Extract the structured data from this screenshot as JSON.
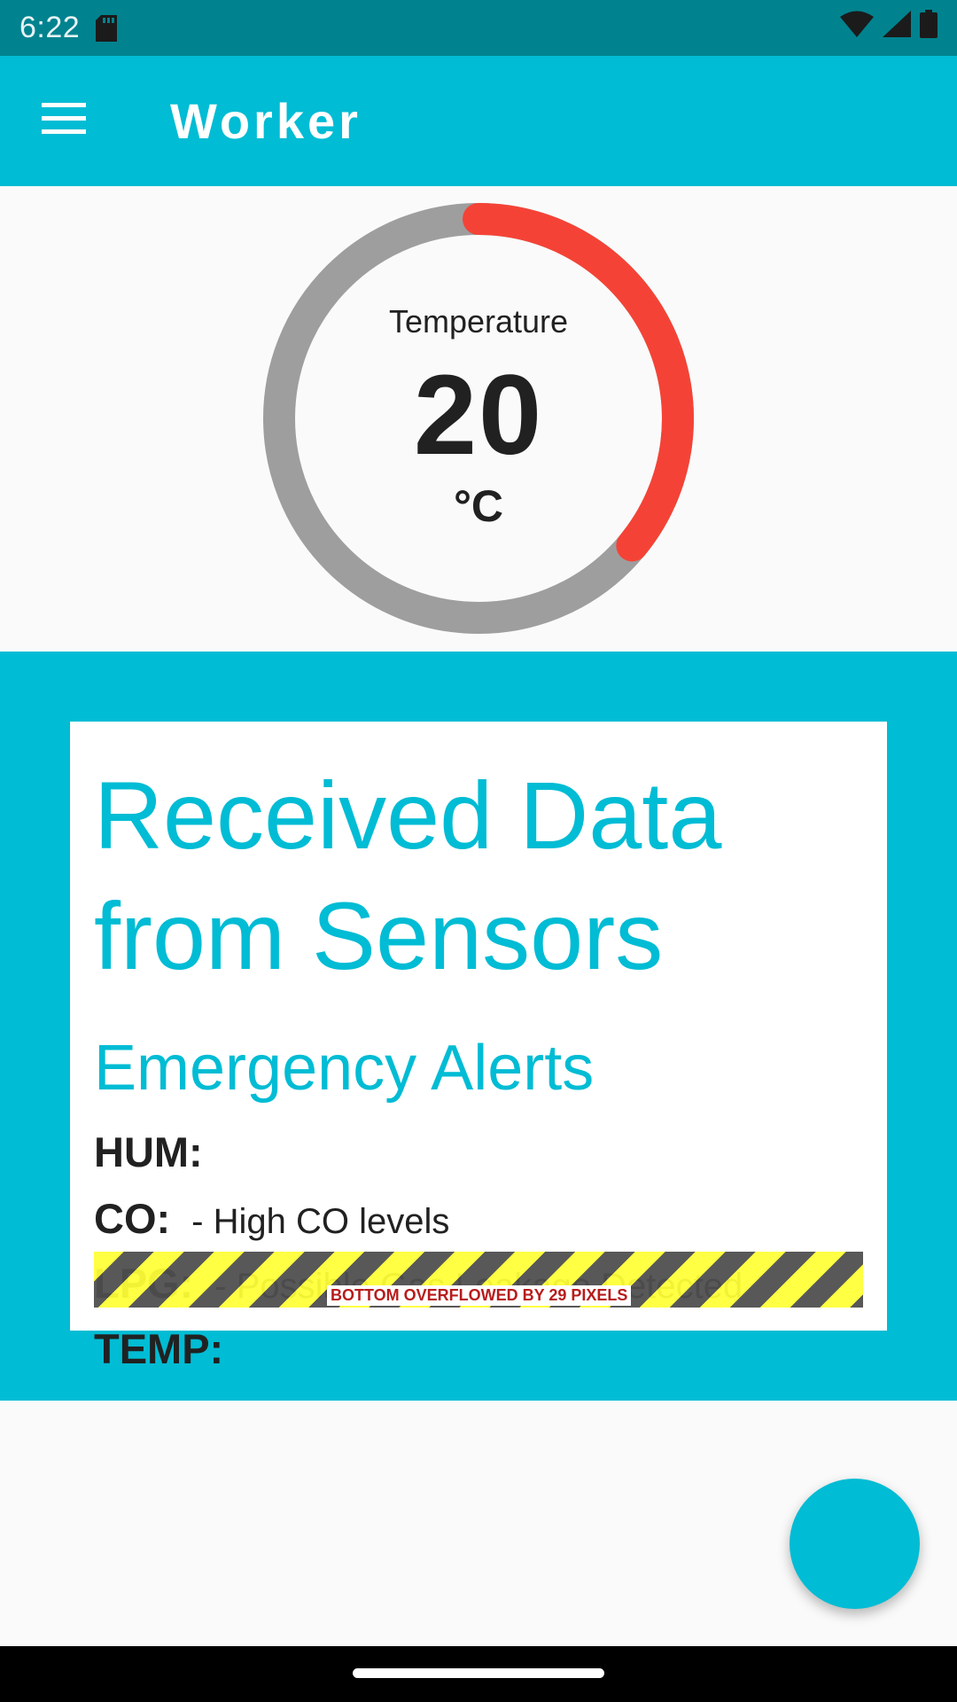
{
  "status_bar": {
    "time": "6:22",
    "icons": [
      "sd-card-icon",
      "wifi-icon",
      "signal-icon",
      "battery-icon"
    ]
  },
  "app_bar": {
    "title": "Worker",
    "menu_icon": "menu-icon"
  },
  "gauge": {
    "title": "Temperature",
    "value": "20",
    "unit": "°C",
    "fill_fraction": 0.36,
    "track_color": "#9e9e9e",
    "fill_color": "#f44336"
  },
  "card": {
    "heading": "Received Data from Sensors",
    "subheading": "Emergency Alerts",
    "alerts": [
      {
        "key": "HUM:",
        "value": ""
      },
      {
        "key": "CO:",
        "value": "- High CO levels"
      },
      {
        "key": "LPG:",
        "value": "- Possible Gas Leakage Detected"
      },
      {
        "key": "TEMP:",
        "value": ""
      }
    ]
  },
  "overflow_warning": {
    "text": "BOTTOM OVERFLOWED BY 29 PIXELS"
  },
  "colors": {
    "primary": "#00bcd4",
    "status_bar": "#00838f"
  }
}
